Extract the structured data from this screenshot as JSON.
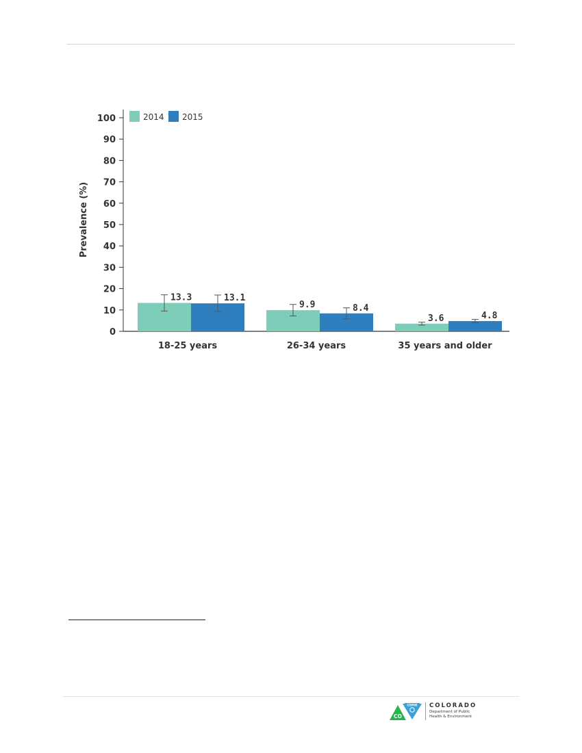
{
  "chart_data": {
    "type": "bar",
    "ylabel": "Prevalence (%)",
    "xlabel": "",
    "ylim": [
      0,
      100
    ],
    "yticks": [
      0,
      10,
      20,
      30,
      40,
      50,
      60,
      70,
      80,
      90,
      100
    ],
    "categories": [
      "18-25 years",
      "26-34 years",
      "35 years and older"
    ],
    "series": [
      {
        "name": "2014",
        "color": "#7ecdb8",
        "values": [
          13.3,
          9.9,
          3.6
        ],
        "value_labels": [
          "13.3",
          "9.9",
          "3.6"
        ],
        "ci": [
          [
            9.5,
            17.1
          ],
          [
            7.2,
            12.6
          ],
          [
            2.9,
            4.3
          ]
        ]
      },
      {
        "name": "2015",
        "color": "#2f7fbe",
        "values": [
          13.1,
          8.4,
          4.8
        ],
        "value_labels": [
          "13.1",
          "8.4",
          "4.8"
        ],
        "ci": [
          [
            9.3,
            17.0
          ],
          [
            5.8,
            11.0
          ],
          [
            4.0,
            5.6
          ]
        ]
      }
    ],
    "legend": "top-left",
    "error_bars": true,
    "grid": false
  },
  "logo": {
    "badge_text": "CO",
    "badge_tag": "CDPHE",
    "wordmark": "COLORADO",
    "line1": "Department of Public",
    "line2": "Health & Environment",
    "colors": {
      "green": "#2bb24c",
      "blue": "#3ba0d8",
      "ink": "#2f2f2f"
    }
  }
}
